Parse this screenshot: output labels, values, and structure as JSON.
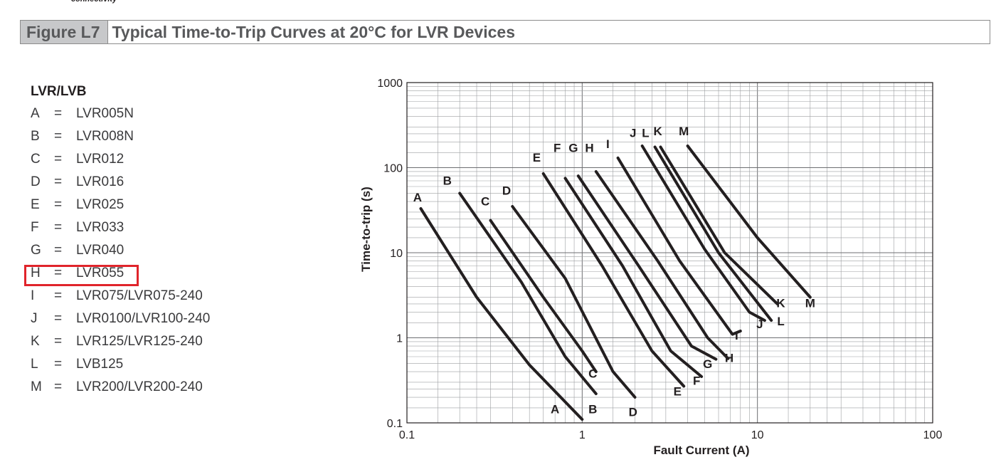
{
  "brand_fragment": "connectivity",
  "figure": {
    "label": "Figure L7",
    "title": "Typical Time-to-Trip Curves at 20°C for LVR Devices"
  },
  "legend": {
    "heading": "LVR/LVB",
    "equals": "=",
    "items": [
      {
        "key": "A",
        "value": "LVR005N"
      },
      {
        "key": "B",
        "value": "LVR008N"
      },
      {
        "key": "C",
        "value": "LVR012"
      },
      {
        "key": "D",
        "value": "LVR016"
      },
      {
        "key": "E",
        "value": "LVR025"
      },
      {
        "key": "F",
        "value": "LVR033"
      },
      {
        "key": "G",
        "value": "LVR040"
      },
      {
        "key": "H",
        "value": "LVR055"
      },
      {
        "key": "I",
        "value": "LVR075/LVR075-240"
      },
      {
        "key": "J",
        "value": "LVR0100/LVR100-240"
      },
      {
        "key": "K",
        "value": "LVR125/LVR125-240"
      },
      {
        "key": "L",
        "value": "LVB125"
      },
      {
        "key": "M",
        "value": "LVR200/LVR200-240"
      }
    ],
    "highlighted_key": "H",
    "highlight_color": "#e0242b"
  },
  "chart_data": {
    "type": "line",
    "title": "",
    "xlabel": "Fault Current (A)",
    "ylabel": "Time-to-trip (s)",
    "x_scale": "log",
    "y_scale": "log",
    "xlim": [
      0.1,
      100
    ],
    "ylim": [
      0.1,
      1000
    ],
    "x_ticks": [
      "0.1",
      "1",
      "10",
      "100"
    ],
    "y_ticks": [
      "0.1",
      "1",
      "10",
      "100",
      "1000"
    ],
    "grid": true,
    "line_color": "#231f20",
    "series": [
      {
        "name": "A",
        "x": [
          0.12,
          0.25,
          0.5,
          1.0
        ],
        "y": [
          33,
          3,
          0.48,
          0.11
        ]
      },
      {
        "name": "B",
        "x": [
          0.2,
          0.45,
          0.8,
          1.2
        ],
        "y": [
          50,
          4.5,
          0.6,
          0.22
        ]
      },
      {
        "name": "C",
        "x": [
          0.3,
          0.6,
          1.0,
          1.2
        ],
        "y": [
          24,
          3,
          0.7,
          0.4
        ]
      },
      {
        "name": "D",
        "x": [
          0.4,
          0.8,
          1.5,
          2.0
        ],
        "y": [
          35,
          5,
          0.4,
          0.2
        ]
      },
      {
        "name": "E",
        "x": [
          0.6,
          1.3,
          2.5,
          3.8
        ],
        "y": [
          85,
          7,
          0.7,
          0.27
        ]
      },
      {
        "name": "F",
        "x": [
          0.8,
          1.7,
          3.2,
          4.8
        ],
        "y": [
          75,
          7,
          0.7,
          0.35
        ]
      },
      {
        "name": "G",
        "x": [
          0.95,
          2.1,
          4.2,
          5.8
        ],
        "y": [
          80,
          7,
          0.8,
          0.56
        ]
      },
      {
        "name": "H",
        "x": [
          1.2,
          2.7,
          5.2,
          6.8
        ],
        "y": [
          90,
          8,
          1.0,
          0.57
        ]
      },
      {
        "name": "I",
        "x": [
          1.6,
          3.6,
          7.2,
          8.0
        ],
        "y": [
          130,
          8,
          1.1,
          1.2
        ]
      },
      {
        "name": "J",
        "x": [
          2.2,
          5.0,
          9.0,
          11.0
        ],
        "y": [
          180,
          11,
          2.0,
          1.6
        ]
      },
      {
        "name": "K",
        "x": [
          2.8,
          6.5,
          13.0
        ],
        "y": [
          175,
          10,
          2.5
        ]
      },
      {
        "name": "L",
        "x": [
          2.6,
          6.0,
          12.0
        ],
        "y": [
          175,
          10,
          1.6
        ]
      },
      {
        "name": "M",
        "x": [
          4.0,
          10.0,
          20.0
        ],
        "y": [
          180,
          15,
          3.0
        ]
      }
    ],
    "curve_labels": [
      {
        "text": "A",
        "x": 0.115,
        "y": 40
      },
      {
        "text": "B",
        "x": 0.17,
        "y": 63
      },
      {
        "text": "C",
        "x": 0.28,
        "y": 36
      },
      {
        "text": "D",
        "x": 0.37,
        "y": 48
      },
      {
        "text": "E",
        "x": 0.55,
        "y": 118
      },
      {
        "text": "F",
        "x": 0.72,
        "y": 153
      },
      {
        "text": "G",
        "x": 0.89,
        "y": 153
      },
      {
        "text": "H",
        "x": 1.1,
        "y": 153
      },
      {
        "text": "I",
        "x": 1.4,
        "y": 170
      },
      {
        "text": "J",
        "x": 1.95,
        "y": 230
      },
      {
        "text": "L",
        "x": 2.3,
        "y": 230
      },
      {
        "text": "K",
        "x": 2.7,
        "y": 240
      },
      {
        "text": "M",
        "x": 3.8,
        "y": 240
      },
      {
        "text": "A",
        "x": 0.7,
        "y": 0.13
      },
      {
        "text": "B",
        "x": 1.15,
        "y": 0.13
      },
      {
        "text": "C",
        "x": 1.15,
        "y": 0.34
      },
      {
        "text": "D",
        "x": 1.95,
        "y": 0.12
      },
      {
        "text": "E",
        "x": 3.5,
        "y": 0.21
      },
      {
        "text": "F",
        "x": 4.5,
        "y": 0.28
      },
      {
        "text": "G",
        "x": 5.2,
        "y": 0.44
      },
      {
        "text": "H",
        "x": 6.9,
        "y": 0.52
      },
      {
        "text": "I",
        "x": 7.6,
        "y": 0.95
      },
      {
        "text": "J",
        "x": 10.3,
        "y": 1.3
      },
      {
        "text": "L",
        "x": 13.6,
        "y": 1.4
      },
      {
        "text": "K",
        "x": 13.6,
        "y": 2.3
      },
      {
        "text": "M",
        "x": 20.0,
        "y": 2.3
      }
    ]
  }
}
